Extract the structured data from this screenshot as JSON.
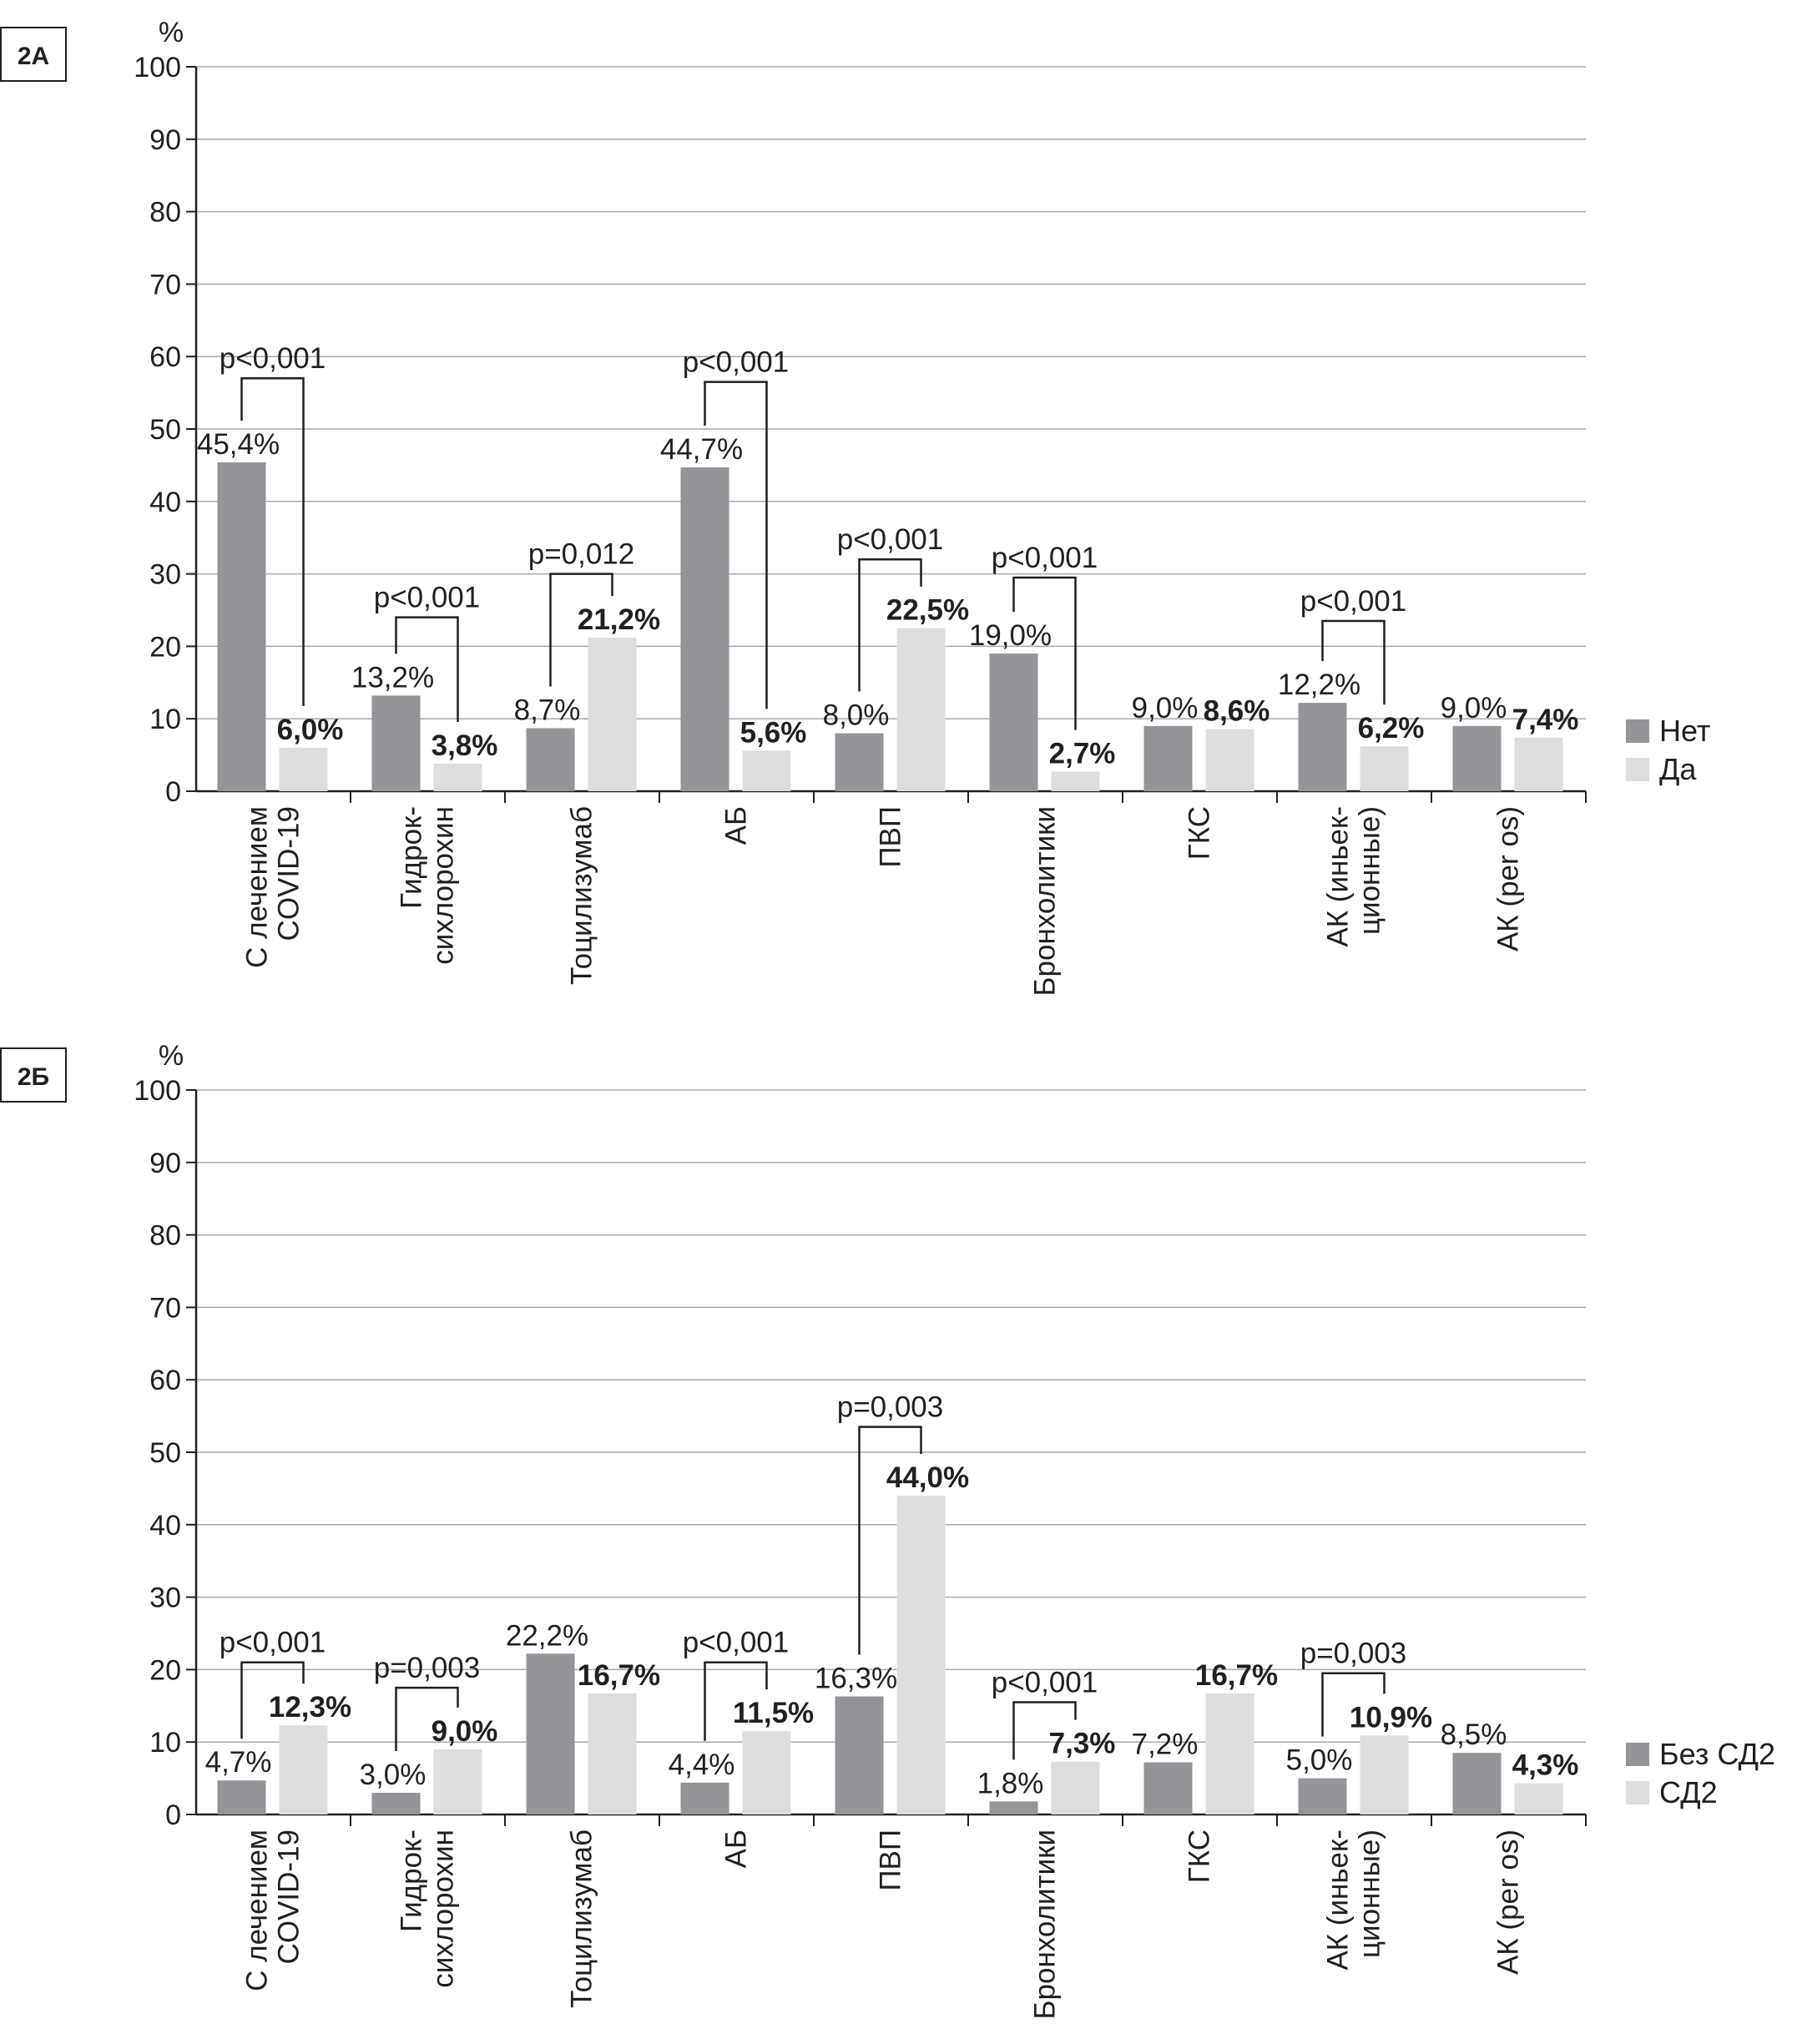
{
  "chart_data": [
    {
      "panel": "2А",
      "type": "bar",
      "ylabel": "%",
      "ylim": [
        0,
        100
      ],
      "yticks": [
        "0",
        "10",
        "20",
        "30",
        "40",
        "50",
        "60",
        "70",
        "80",
        "90",
        "100"
      ],
      "grid": true,
      "legend_position": "right",
      "colors": {
        "series0": "#939598",
        "series1": "#dcddde"
      },
      "categories": [
        [
          "С лечением",
          "COVID-19"
        ],
        [
          "Гидрок-",
          "сихлорохин"
        ],
        [
          "Тоцилизумаб"
        ],
        [
          "АБ"
        ],
        [
          "ПВП"
        ],
        [
          "Бронхолитики"
        ],
        [
          "ГКС"
        ],
        [
          "АК (иньек-",
          "ционные)"
        ],
        [
          "АК (per os)"
        ]
      ],
      "series": [
        {
          "name": "Нет",
          "values": [
            45.4,
            13.2,
            8.7,
            44.7,
            8.0,
            19.0,
            9.0,
            12.2,
            9.0
          ],
          "labels": [
            "45,4%",
            "13,2%",
            "8,7%",
            "44,7%",
            "8,0%",
            "19,0%",
            "9,0%",
            "12,2%",
            "9,0%"
          ]
        },
        {
          "name": "Да",
          "values": [
            6.0,
            3.8,
            21.2,
            5.6,
            22.5,
            2.7,
            8.6,
            6.2,
            7.4
          ],
          "labels": [
            "6,0%",
            "3,8%",
            "21,2%",
            "5,6%",
            "22,5%",
            "2,7%",
            "8,6%",
            "6,2%",
            "7,4%"
          ]
        }
      ],
      "annotations": [
        {
          "category": 0,
          "text": "p<0,001",
          "level": 57
        },
        {
          "category": 1,
          "text": "p<0,001",
          "level": 24
        },
        {
          "category": 2,
          "text": "p=0,012",
          "level": 30
        },
        {
          "category": 3,
          "text": "p<0,001",
          "level": 56.5
        },
        {
          "category": 4,
          "text": "p<0,001",
          "level": 32
        },
        {
          "category": 5,
          "text": "p<0,001",
          "level": 29.5
        },
        {
          "category": 7,
          "text": "p<0,001",
          "level": 23.5
        }
      ]
    },
    {
      "panel": "2Б",
      "type": "bar",
      "ylabel": "%",
      "ylim": [
        0,
        100
      ],
      "yticks": [
        "0",
        "10",
        "20",
        "30",
        "40",
        "50",
        "60",
        "70",
        "80",
        "90",
        "100"
      ],
      "grid": true,
      "legend_position": "right",
      "colors": {
        "series0": "#939598",
        "series1": "#dcddde"
      },
      "categories": [
        [
          "С лечением",
          "COVID-19"
        ],
        [
          "Гидрок-",
          "сихлорохин"
        ],
        [
          "Тоцилизумаб"
        ],
        [
          "АБ"
        ],
        [
          "ПВП"
        ],
        [
          "Бронхолитики"
        ],
        [
          "ГКС"
        ],
        [
          "АК (иньек-",
          "ционные)"
        ],
        [
          "АК (per os)"
        ]
      ],
      "series": [
        {
          "name": "Без СД2",
          "values": [
            4.7,
            3.0,
            22.2,
            4.4,
            16.3,
            1.8,
            7.2,
            5.0,
            8.5
          ],
          "labels": [
            "4,7%",
            "3,0%",
            "22,2%",
            "4,4%",
            "16,3%",
            "1,8%",
            "7,2%",
            "5,0%",
            "8,5%"
          ]
        },
        {
          "name": "СД2",
          "values": [
            12.3,
            9.0,
            16.7,
            11.5,
            44.0,
            7.3,
            16.7,
            10.9,
            4.3
          ],
          "labels": [
            "12,3%",
            "9,0%",
            "16,7%",
            "11,5%",
            "44,0%",
            "7,3%",
            "16,7%",
            "10,9%",
            "4,3%"
          ]
        }
      ],
      "annotations": [
        {
          "category": 0,
          "text": "p<0,001",
          "level": 21
        },
        {
          "category": 1,
          "text": "p=0,003",
          "level": 17.5
        },
        {
          "category": 3,
          "text": "p<0,001",
          "level": 21
        },
        {
          "category": 4,
          "text": "p=0,003",
          "level": 53.5
        },
        {
          "category": 5,
          "text": "p<0,001",
          "level": 15.5
        },
        {
          "category": 7,
          "text": "p=0,003",
          "level": 19.5
        }
      ]
    }
  ]
}
